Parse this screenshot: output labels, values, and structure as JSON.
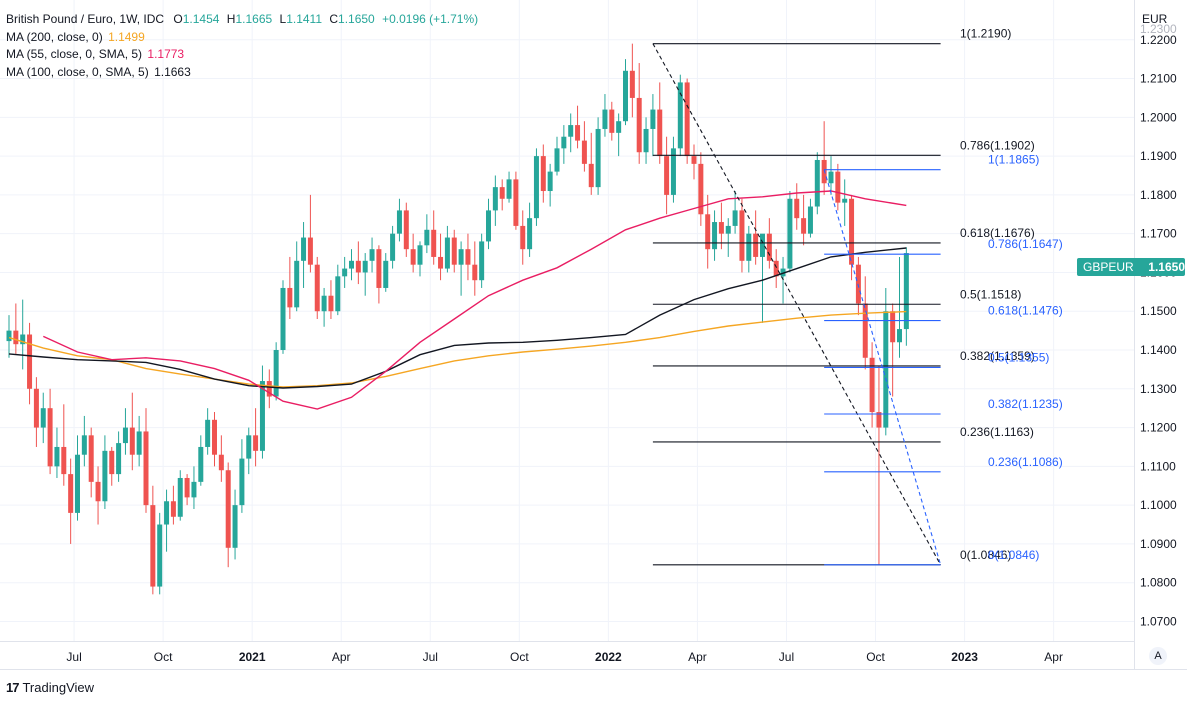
{
  "legend": {
    "title": "British Pound / Euro, 1W, IDC",
    "ohlc": {
      "o_label": "O",
      "o": "1.1454",
      "h_label": "H",
      "h": "1.1665",
      "l_label": "L",
      "l": "1.1411",
      "c_label": "C",
      "c": "1.1650",
      "chg": "+0.0196 (+1.71%)"
    },
    "ma200": {
      "label": "MA (200, close, 0)",
      "value": "1.1499",
      "color": "#f5a623"
    },
    "ma55": {
      "label": "MA (55, close, 0, SMA, 5)",
      "value": "1.1773",
      "color": "#e91e63"
    },
    "ma100": {
      "label": "MA (100, close, 0, SMA, 5)",
      "value": "1.1663",
      "color": "#131722"
    }
  },
  "currency": "EUR",
  "price_tag": {
    "symbol": "GBPEUR",
    "value": "1.1650",
    "color": "#26a69a"
  },
  "auto_button": "A",
  "branding": {
    "logo": "17",
    "name": "TradingView"
  },
  "chart_data": {
    "type": "candlestick",
    "title": "British Pound / Euro, 1W, IDC",
    "ylim": [
      1.062,
      1.226
    ],
    "y_ticks": [
      "1.2200",
      "1.2100",
      "1.2000",
      "1.1900",
      "1.1800",
      "1.1700",
      "1.1600",
      "1.1500",
      "1.1400",
      "1.1300",
      "1.1200",
      "1.1100",
      "1.1000",
      "1.0900",
      "1.0800",
      "1.0700"
    ],
    "y_tick_partial": "1.2300",
    "x_ticks": [
      {
        "label": "Jul",
        "week": 9.5,
        "bold": false
      },
      {
        "label": "Oct",
        "week": 22.5,
        "bold": false
      },
      {
        "label": "2021",
        "week": 35.5,
        "bold": true
      },
      {
        "label": "Apr",
        "week": 48.5,
        "bold": false
      },
      {
        "label": "Jul",
        "week": 61.5,
        "bold": false
      },
      {
        "label": "Oct",
        "week": 74.5,
        "bold": false
      },
      {
        "label": "2022",
        "week": 87.5,
        "bold": true
      },
      {
        "label": "Apr",
        "week": 100.5,
        "bold": false
      },
      {
        "label": "Jul",
        "week": 113.5,
        "bold": false
      },
      {
        "label": "Oct",
        "week": 126.5,
        "bold": false
      },
      {
        "label": "2023",
        "week": 139.5,
        "bold": true
      },
      {
        "label": "Apr",
        "week": 152.5,
        "bold": false
      }
    ],
    "candles": [
      [
        1.1423,
        1.149,
        1.138,
        1.145
      ],
      [
        1.145,
        1.152,
        1.139,
        1.1415
      ],
      [
        1.1415,
        1.153,
        1.135,
        1.144
      ],
      [
        1.144,
        1.147,
        1.126,
        1.13
      ],
      [
        1.13,
        1.133,
        1.115,
        1.12
      ],
      [
        1.12,
        1.129,
        1.116,
        1.125
      ],
      [
        1.125,
        1.13,
        1.108,
        1.11
      ],
      [
        1.11,
        1.12,
        1.107,
        1.115
      ],
      [
        1.115,
        1.126,
        1.105,
        1.108
      ],
      [
        1.108,
        1.112,
        1.09,
        1.098
      ],
      [
        1.098,
        1.118,
        1.096,
        1.113
      ],
      [
        1.113,
        1.123,
        1.11,
        1.118
      ],
      [
        1.118,
        1.12,
        1.102,
        1.106
      ],
      [
        1.106,
        1.11,
        1.095,
        1.101
      ],
      [
        1.101,
        1.118,
        1.099,
        1.114
      ],
      [
        1.114,
        1.115,
        1.105,
        1.108
      ],
      [
        1.108,
        1.119,
        1.106,
        1.116
      ],
      [
        1.116,
        1.125,
        1.113,
        1.12
      ],
      [
        1.12,
        1.129,
        1.109,
        1.113
      ],
      [
        1.113,
        1.123,
        1.11,
        1.119
      ],
      [
        1.119,
        1.125,
        1.098,
        1.1
      ],
      [
        1.1,
        1.105,
        1.077,
        1.079
      ],
      [
        1.079,
        1.098,
        1.077,
        1.095
      ],
      [
        1.095,
        1.104,
        1.088,
        1.101
      ],
      [
        1.101,
        1.105,
        1.095,
        1.097
      ],
      [
        1.097,
        1.109,
        1.096,
        1.107
      ],
      [
        1.107,
        1.108,
        1.1,
        1.102
      ],
      [
        1.102,
        1.11,
        1.099,
        1.106
      ],
      [
        1.106,
        1.118,
        1.105,
        1.115
      ],
      [
        1.115,
        1.125,
        1.113,
        1.122
      ],
      [
        1.122,
        1.124,
        1.11,
        1.113
      ],
      [
        1.113,
        1.118,
        1.106,
        1.109
      ],
      [
        1.109,
        1.111,
        1.084,
        1.089
      ],
      [
        1.089,
        1.104,
        1.086,
        1.1
      ],
      [
        1.1,
        1.117,
        1.098,
        1.112
      ],
      [
        1.112,
        1.12,
        1.108,
        1.118
      ],
      [
        1.118,
        1.125,
        1.11,
        1.114
      ],
      [
        1.114,
        1.136,
        1.112,
        1.132
      ],
      [
        1.132,
        1.135,
        1.125,
        1.128
      ],
      [
        1.128,
        1.142,
        1.127,
        1.14
      ],
      [
        1.14,
        1.158,
        1.139,
        1.156
      ],
      [
        1.156,
        1.164,
        1.148,
        1.151
      ],
      [
        1.151,
        1.168,
        1.15,
        1.163
      ],
      [
        1.163,
        1.173,
        1.156,
        1.169
      ],
      [
        1.169,
        1.18,
        1.16,
        1.162
      ],
      [
        1.162,
        1.164,
        1.148,
        1.15
      ],
      [
        1.15,
        1.156,
        1.146,
        1.154
      ],
      [
        1.154,
        1.158,
        1.148,
        1.15
      ],
      [
        1.15,
        1.162,
        1.149,
        1.159
      ],
      [
        1.159,
        1.164,
        1.156,
        1.161
      ],
      [
        1.161,
        1.166,
        1.158,
        1.163
      ],
      [
        1.163,
        1.168,
        1.157,
        1.16
      ],
      [
        1.16,
        1.165,
        1.154,
        1.163
      ],
      [
        1.163,
        1.169,
        1.16,
        1.166
      ],
      [
        1.166,
        1.167,
        1.152,
        1.156
      ],
      [
        1.156,
        1.165,
        1.155,
        1.163
      ],
      [
        1.163,
        1.172,
        1.161,
        1.17
      ],
      [
        1.17,
        1.179,
        1.168,
        1.176
      ],
      [
        1.176,
        1.178,
        1.164,
        1.166
      ],
      [
        1.166,
        1.17,
        1.16,
        1.162
      ],
      [
        1.162,
        1.168,
        1.159,
        1.167
      ],
      [
        1.167,
        1.175,
        1.165,
        1.171
      ],
      [
        1.171,
        1.176,
        1.162,
        1.164
      ],
      [
        1.164,
        1.17,
        1.158,
        1.161
      ],
      [
        1.161,
        1.172,
        1.16,
        1.169
      ],
      [
        1.169,
        1.171,
        1.16,
        1.162
      ],
      [
        1.162,
        1.168,
        1.154,
        1.166
      ],
      [
        1.166,
        1.17,
        1.158,
        1.162
      ],
      [
        1.162,
        1.168,
        1.154,
        1.158
      ],
      [
        1.158,
        1.17,
        1.156,
        1.168
      ],
      [
        1.168,
        1.179,
        1.166,
        1.176
      ],
      [
        1.176,
        1.185,
        1.172,
        1.182
      ],
      [
        1.182,
        1.184,
        1.176,
        1.179
      ],
      [
        1.179,
        1.186,
        1.178,
        1.184
      ],
      [
        1.184,
        1.186,
        1.171,
        1.172
      ],
      [
        1.172,
        1.176,
        1.162,
        1.166
      ],
      [
        1.166,
        1.178,
        1.164,
        1.174
      ],
      [
        1.174,
        1.192,
        1.172,
        1.19
      ],
      [
        1.19,
        1.193,
        1.178,
        1.181
      ],
      [
        1.181,
        1.188,
        1.177,
        1.186
      ],
      [
        1.186,
        1.195,
        1.185,
        1.192
      ],
      [
        1.192,
        1.198,
        1.188,
        1.195
      ],
      [
        1.195,
        1.201,
        1.191,
        1.198
      ],
      [
        1.198,
        1.203,
        1.192,
        1.194
      ],
      [
        1.194,
        1.199,
        1.186,
        1.188
      ],
      [
        1.188,
        1.196,
        1.18,
        1.182
      ],
      [
        1.182,
        1.2,
        1.18,
        1.197
      ],
      [
        1.197,
        1.206,
        1.195,
        1.202
      ],
      [
        1.202,
        1.204,
        1.194,
        1.196
      ],
      [
        1.196,
        1.201,
        1.19,
        1.199
      ],
      [
        1.199,
        1.215,
        1.198,
        1.212
      ],
      [
        1.212,
        1.219,
        1.2,
        1.205
      ],
      [
        1.205,
        1.214,
        1.188,
        1.191
      ],
      [
        1.191,
        1.2,
        1.188,
        1.197
      ],
      [
        1.197,
        1.206,
        1.19,
        1.202
      ],
      [
        1.202,
        1.209,
        1.188,
        1.19
      ],
      [
        1.19,
        1.195,
        1.175,
        1.18
      ],
      [
        1.18,
        1.195,
        1.178,
        1.192
      ],
      [
        1.192,
        1.211,
        1.19,
        1.209
      ],
      [
        1.209,
        1.21,
        1.188,
        1.19
      ],
      [
        1.19,
        1.193,
        1.184,
        1.188
      ],
      [
        1.188,
        1.191,
        1.172,
        1.175
      ],
      [
        1.175,
        1.18,
        1.161,
        1.166
      ],
      [
        1.166,
        1.176,
        1.163,
        1.173
      ],
      [
        1.173,
        1.178,
        1.166,
        1.17
      ],
      [
        1.17,
        1.174,
        1.164,
        1.172
      ],
      [
        1.172,
        1.181,
        1.17,
        1.176
      ],
      [
        1.176,
        1.179,
        1.16,
        1.163
      ],
      [
        1.163,
        1.172,
        1.16,
        1.17
      ],
      [
        1.17,
        1.176,
        1.162,
        1.164
      ],
      [
        1.164,
        1.169,
        1.147,
        1.17
      ],
      [
        1.17,
        1.174,
        1.161,
        1.163
      ],
      [
        1.163,
        1.166,
        1.156,
        1.159
      ],
      [
        1.159,
        1.164,
        1.152,
        1.161
      ],
      [
        1.161,
        1.181,
        1.16,
        1.179
      ],
      [
        1.179,
        1.183,
        1.171,
        1.174
      ],
      [
        1.174,
        1.18,
        1.167,
        1.17
      ],
      [
        1.17,
        1.179,
        1.169,
        1.177
      ],
      [
        1.177,
        1.191,
        1.175,
        1.189
      ],
      [
        1.189,
        1.199,
        1.18,
        1.183
      ],
      [
        1.183,
        1.19,
        1.18,
        1.186
      ],
      [
        1.186,
        1.188,
        1.176,
        1.178
      ],
      [
        1.178,
        1.184,
        1.172,
        1.179
      ],
      [
        1.179,
        1.18,
        1.158,
        1.162
      ],
      [
        1.162,
        1.164,
        1.149,
        1.152
      ],
      [
        1.152,
        1.159,
        1.135,
        1.138
      ],
      [
        1.138,
        1.142,
        1.12,
        1.124
      ],
      [
        1.124,
        1.136,
        1.0846,
        1.12
      ],
      [
        1.12,
        1.156,
        1.118,
        1.15
      ],
      [
        1.15,
        1.152,
        1.128,
        1.142
      ],
      [
        1.142,
        1.164,
        1.138,
        1.1454
      ],
      [
        1.1454,
        1.1665,
        1.1411,
        1.165
      ]
    ],
    "up_color": "#26a69a",
    "down_color": "#ef5350",
    "moving_averages": [
      {
        "name": "MA (200, close, 0)",
        "color": "#f5a623",
        "points": [
          [
            0,
            1.1432
          ],
          [
            5,
            1.1405
          ],
          [
            10,
            1.1385
          ],
          [
            15,
            1.1375
          ],
          [
            20,
            1.1352
          ],
          [
            25,
            1.1338
          ],
          [
            30,
            1.1325
          ],
          [
            35,
            1.1312
          ],
          [
            40,
            1.1305
          ],
          [
            45,
            1.1308
          ],
          [
            50,
            1.1315
          ],
          [
            55,
            1.1332
          ],
          [
            60,
            1.1352
          ],
          [
            65,
            1.1372
          ],
          [
            70,
            1.1385
          ],
          [
            75,
            1.1395
          ],
          [
            80,
            1.1402
          ],
          [
            85,
            1.141
          ],
          [
            90,
            1.142
          ],
          [
            95,
            1.1432
          ],
          [
            100,
            1.1448
          ],
          [
            105,
            1.1462
          ],
          [
            110,
            1.1472
          ],
          [
            115,
            1.1482
          ],
          [
            120,
            1.149
          ],
          [
            125,
            1.1495
          ],
          [
            131,
            1.1499
          ]
        ]
      },
      {
        "name": "MA (100, close, 0, SMA, 5)",
        "color": "#131722",
        "points": [
          [
            0,
            1.139
          ],
          [
            5,
            1.1382
          ],
          [
            10,
            1.1375
          ],
          [
            15,
            1.1372
          ],
          [
            20,
            1.1368
          ],
          [
            25,
            1.135
          ],
          [
            30,
            1.1325
          ],
          [
            35,
            1.1308
          ],
          [
            40,
            1.1302
          ],
          [
            45,
            1.1306
          ],
          [
            50,
            1.1312
          ],
          [
            55,
            1.1345
          ],
          [
            60,
            1.1388
          ],
          [
            65,
            1.1412
          ],
          [
            70,
            1.1418
          ],
          [
            75,
            1.142
          ],
          [
            80,
            1.1425
          ],
          [
            85,
            1.1432
          ],
          [
            90,
            1.144
          ],
          [
            95,
            1.149
          ],
          [
            100,
            1.153
          ],
          [
            105,
            1.1558
          ],
          [
            110,
            1.158
          ],
          [
            115,
            1.161
          ],
          [
            120,
            1.164
          ],
          [
            125,
            1.1652
          ],
          [
            131,
            1.1663
          ]
        ]
      },
      {
        "name": "MA (55, close, 0, SMA, 5)",
        "color": "#e91e63",
        "points": [
          [
            5,
            1.1435
          ],
          [
            10,
            1.1395
          ],
          [
            15,
            1.1375
          ],
          [
            20,
            1.138
          ],
          [
            25,
            1.1372
          ],
          [
            30,
            1.1352
          ],
          [
            35,
            1.1322
          ],
          [
            40,
            1.1268
          ],
          [
            45,
            1.1248
          ],
          [
            50,
            1.1278
          ],
          [
            55,
            1.1345
          ],
          [
            60,
            1.142
          ],
          [
            65,
            1.148
          ],
          [
            70,
            1.154
          ],
          [
            75,
            1.158
          ],
          [
            80,
            1.1612
          ],
          [
            85,
            1.166
          ],
          [
            90,
            1.171
          ],
          [
            95,
            1.174
          ],
          [
            100,
            1.1765
          ],
          [
            105,
            1.179
          ],
          [
            110,
            1.1795
          ],
          [
            115,
            1.1805
          ],
          [
            120,
            1.181
          ],
          [
            125,
            1.179
          ],
          [
            131,
            1.1773
          ]
        ]
      }
    ],
    "fib_black": {
      "x_start_week": 94,
      "x_end_week": 136,
      "levels": [
        {
          "ratio": "1",
          "price": 1.219,
          "label": "1(1.2190)"
        },
        {
          "ratio": "0.786",
          "price": 1.1902,
          "label": "0.786(1.1902)"
        },
        {
          "ratio": "0.618",
          "price": 1.1676,
          "label": "0.618(1.1676)"
        },
        {
          "ratio": "0.5",
          "price": 1.1518,
          "label": "0.5(1.1518)"
        },
        {
          "ratio": "0.382",
          "price": 1.1359,
          "label": "0.382(1.1359)"
        },
        {
          "ratio": "0.236",
          "price": 1.1163,
          "label": "0.236(1.1163)"
        },
        {
          "ratio": "0",
          "price": 1.0846,
          "label": "0(1.0846)"
        }
      ],
      "trend": [
        [
          94,
          1.219
        ],
        [
          136,
          1.0846
        ]
      ]
    },
    "fib_blue": {
      "x_start_week": 119,
      "x_end_week": 136,
      "levels": [
        {
          "ratio": "1",
          "price": 1.1865,
          "label": "1(1.1865)"
        },
        {
          "ratio": "0.786",
          "price": 1.1647,
          "label": "0.786(1.1647)"
        },
        {
          "ratio": "0.618",
          "price": 1.1476,
          "label": "0.618(1.1476)"
        },
        {
          "ratio": "0.5",
          "price": 1.1355,
          "label": "0.5(1.1355)"
        },
        {
          "ratio": "0.382",
          "price": 1.1235,
          "label": "0.382(1.1235)"
        },
        {
          "ratio": "0.236",
          "price": 1.1086,
          "label": "0.236(1.1086)"
        },
        {
          "ratio": "0",
          "price": 1.0846,
          "label": "0(1.0846)"
        }
      ],
      "trend": [
        [
          119,
          1.1865
        ],
        [
          136,
          1.0846
        ]
      ]
    }
  }
}
